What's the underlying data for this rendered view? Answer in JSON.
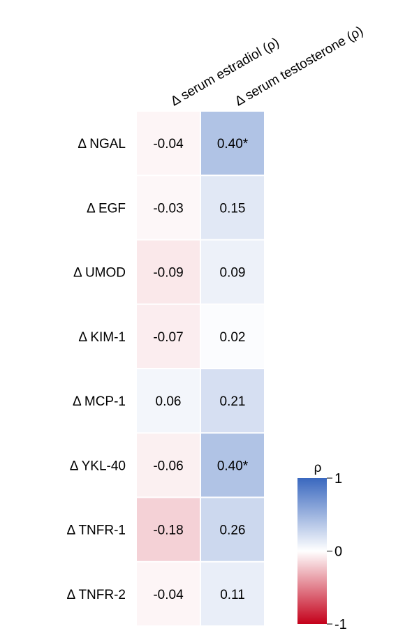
{
  "chart_data": {
    "type": "heatmap",
    "columns": [
      "Δ serum estradiol (ρ)",
      "Δ serum testosterone (ρ)"
    ],
    "rows": [
      "Δ NGAL",
      "Δ EGF",
      "Δ UMOD",
      "Δ KIM-1",
      "Δ MCP-1",
      "Δ YKL-40",
      "Δ TNFR-1",
      "Δ TNFR-2"
    ],
    "values": [
      [
        -0.04,
        0.4
      ],
      [
        -0.03,
        0.15
      ],
      [
        -0.09,
        0.09
      ],
      [
        -0.07,
        0.02
      ],
      [
        0.06,
        0.21
      ],
      [
        -0.06,
        0.4
      ],
      [
        -0.18,
        0.26
      ],
      [
        -0.04,
        0.11
      ]
    ],
    "cell_labels": [
      [
        "-0.04",
        "0.40*"
      ],
      [
        "-0.03",
        "0.15"
      ],
      [
        "-0.09",
        "0.09"
      ],
      [
        "-0.07",
        "0.02"
      ],
      [
        "0.06",
        "0.21"
      ],
      [
        "-0.06",
        "0.40*"
      ],
      [
        "-0.18",
        "0.26"
      ],
      [
        "-0.04",
        "0.11"
      ]
    ],
    "colorbar": {
      "title": "ρ",
      "range": [
        -1,
        1
      ],
      "ticks": [
        1,
        0,
        -1
      ],
      "tick_labels": [
        "1",
        "0",
        "-1"
      ],
      "colors": {
        "negative": "#c4001a",
        "zero": "#ffffff",
        "positive": "#3a68bf"
      }
    }
  }
}
